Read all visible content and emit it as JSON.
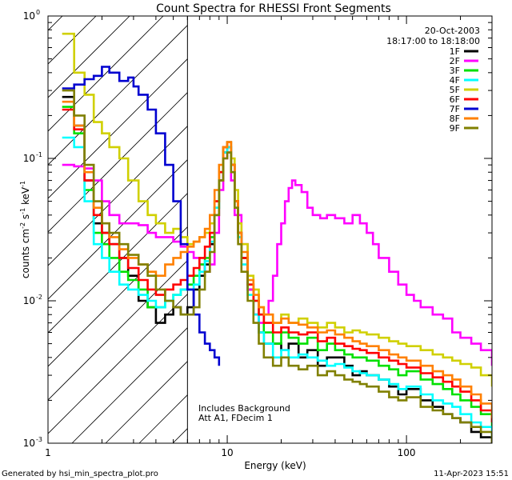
{
  "chart_data": {
    "type": "line",
    "title": "Count Spectra for RHESSI Front Segments",
    "xlabel": "Energy (keV)",
    "ylabel_main": "counts cm",
    "ylabel_sup1": "-2",
    "ylabel_mid": " s",
    "ylabel_sup2": "-1",
    "ylabel_end": " keV",
    "ylabel_sup3": "-1",
    "xscale": "log",
    "yscale": "log",
    "xlim": [
      1.0,
      300.0
    ],
    "ylim": [
      0.001,
      1.0
    ],
    "x_ticks": [
      {
        "value": 1,
        "label": "1"
      },
      {
        "value": 10,
        "label": "10"
      },
      {
        "value": 100,
        "label": "100"
      }
    ],
    "y_ticks": [
      {
        "value": 1.0,
        "base": "10",
        "exp": "0"
      },
      {
        "value": 0.1,
        "base": "10",
        "exp": "-1"
      },
      {
        "value": 0.01,
        "base": "10",
        "exp": "-2"
      },
      {
        "value": 0.001,
        "base": "10",
        "exp": "-3"
      }
    ],
    "date": "20-Oct-2003",
    "time_range": "18:17:00 to 18:18:00",
    "annotation_line1": "Includes Background",
    "annotation_line2": "Att A1, FDecim 1",
    "hatch_region_xmax": 6.0,
    "footer_left": "Generated by hsi_min_spectra_plot.pro",
    "footer_right": "11-Apr-2023 15:51",
    "series": [
      {
        "name": "1F",
        "color": "#000000",
        "x": [
          1.2,
          1.4,
          1.6,
          1.8,
          2.0,
          2.2,
          2.5,
          2.8,
          3.2,
          3.6,
          4.0,
          4.5,
          5.0,
          5.5,
          6.0,
          6.5,
          7.0,
          7.5,
          8.0,
          8.5,
          9.0,
          9.5,
          10.0,
          10.5,
          11.0,
          11.5,
          12.0,
          13,
          14,
          15,
          16,
          18,
          20,
          22,
          25,
          28,
          32,
          36,
          40,
          45,
          50,
          55,
          60,
          70,
          80,
          90,
          100,
          120,
          140,
          160,
          180,
          200,
          230,
          260,
          300
        ],
        "y": [
          0.27,
          0.17,
          0.07,
          0.035,
          0.03,
          0.025,
          0.02,
          0.015,
          0.01,
          0.009,
          0.007,
          0.008,
          0.009,
          0.008,
          0.009,
          0.012,
          0.015,
          0.018,
          0.025,
          0.04,
          0.07,
          0.11,
          0.12,
          0.09,
          0.05,
          0.03,
          0.02,
          0.012,
          0.008,
          0.006,
          0.005,
          0.005,
          0.0045,
          0.005,
          0.004,
          0.0045,
          0.0035,
          0.004,
          0.004,
          0.0035,
          0.003,
          0.0032,
          0.003,
          0.0028,
          0.0025,
          0.0022,
          0.0024,
          0.002,
          0.0018,
          0.0016,
          0.0015,
          0.0014,
          0.0012,
          0.0011,
          0.001
        ]
      },
      {
        "name": "2F",
        "color": "#ff00ff",
        "x": [
          1.2,
          1.4,
          1.6,
          1.8,
          2.0,
          2.2,
          2.5,
          2.8,
          3.2,
          3.6,
          4.0,
          4.5,
          5.0,
          5.5,
          6.0,
          6.5,
          7.0,
          7.5,
          8.0,
          8.5,
          9.0,
          9.5,
          10.0,
          10.5,
          11.0,
          12.0,
          13,
          14,
          15,
          16,
          17,
          18,
          19,
          20,
          21,
          22,
          23,
          24,
          26,
          28,
          30,
          33,
          36,
          40,
          45,
          50,
          55,
          60,
          65,
          70,
          80,
          90,
          100,
          110,
          120,
          140,
          160,
          180,
          200,
          230,
          260,
          300
        ],
        "y": [
          0.09,
          0.088,
          0.085,
          0.07,
          0.05,
          0.04,
          0.035,
          0.035,
          0.034,
          0.03,
          0.028,
          0.028,
          0.026,
          0.024,
          0.022,
          0.02,
          0.018,
          0.016,
          0.018,
          0.03,
          0.06,
          0.1,
          0.11,
          0.07,
          0.04,
          0.025,
          0.012,
          0.008,
          0.007,
          0.008,
          0.01,
          0.015,
          0.025,
          0.035,
          0.05,
          0.062,
          0.07,
          0.065,
          0.058,
          0.045,
          0.04,
          0.038,
          0.04,
          0.038,
          0.035,
          0.04,
          0.035,
          0.03,
          0.025,
          0.02,
          0.016,
          0.013,
          0.011,
          0.01,
          0.009,
          0.008,
          0.0075,
          0.006,
          0.0055,
          0.005,
          0.0045,
          0.0035
        ]
      },
      {
        "name": "3F",
        "color": "#00e000",
        "x": [
          1.2,
          1.4,
          1.6,
          1.8,
          2.0,
          2.2,
          2.5,
          2.8,
          3.2,
          3.6,
          4.0,
          4.5,
          5.0,
          5.5,
          6.0,
          6.5,
          7.0,
          7.5,
          8.0,
          8.5,
          9.0,
          9.5,
          10.0,
          10.5,
          11.0,
          11.5,
          12.0,
          13,
          14,
          15,
          16,
          18,
          20,
          22,
          25,
          28,
          32,
          36,
          40,
          45,
          50,
          55,
          60,
          70,
          80,
          90,
          100,
          120,
          140,
          160,
          180,
          200,
          230,
          260,
          300
        ],
        "y": [
          0.23,
          0.15,
          0.06,
          0.03,
          0.025,
          0.02,
          0.016,
          0.014,
          0.012,
          0.009,
          0.009,
          0.01,
          0.011,
          0.012,
          0.013,
          0.015,
          0.018,
          0.02,
          0.028,
          0.045,
          0.08,
          0.12,
          0.13,
          0.09,
          0.05,
          0.03,
          0.02,
          0.013,
          0.01,
          0.008,
          0.006,
          0.005,
          0.006,
          0.0055,
          0.005,
          0.0055,
          0.0045,
          0.005,
          0.0045,
          0.0042,
          0.004,
          0.004,
          0.0038,
          0.0035,
          0.0033,
          0.003,
          0.0032,
          0.0028,
          0.0026,
          0.0024,
          0.0022,
          0.002,
          0.0018,
          0.0016,
          0.0013
        ]
      },
      {
        "name": "4F",
        "color": "#00ffff",
        "x": [
          1.2,
          1.4,
          1.6,
          1.8,
          2.0,
          2.2,
          2.5,
          2.8,
          3.2,
          3.6,
          4.0,
          4.5,
          5.0,
          5.5,
          6.0,
          6.5,
          7.0,
          7.5,
          8.0,
          8.5,
          9.0,
          9.5,
          10.0,
          10.5,
          11.0,
          11.5,
          12.0,
          13,
          14,
          15,
          16,
          18,
          20,
          22,
          25,
          28,
          32,
          36,
          40,
          45,
          50,
          55,
          60,
          70,
          80,
          90,
          100,
          120,
          140,
          160,
          180,
          200,
          230,
          260,
          300
        ],
        "y": [
          0.14,
          0.12,
          0.05,
          0.025,
          0.02,
          0.016,
          0.013,
          0.012,
          0.011,
          0.01,
          0.009,
          0.01,
          0.011,
          0.012,
          0.012,
          0.013,
          0.016,
          0.019,
          0.026,
          0.045,
          0.08,
          0.11,
          0.12,
          0.08,
          0.045,
          0.028,
          0.018,
          0.011,
          0.008,
          0.006,
          0.005,
          0.004,
          0.0045,
          0.004,
          0.0042,
          0.004,
          0.0038,
          0.0035,
          0.0036,
          0.0034,
          0.0032,
          0.0031,
          0.003,
          0.0028,
          0.0026,
          0.0024,
          0.0025,
          0.0022,
          0.002,
          0.0019,
          0.0018,
          0.0016,
          0.0014,
          0.0013,
          0.0011
        ]
      },
      {
        "name": "5F",
        "color": "#d0d000",
        "x": [
          1.2,
          1.4,
          1.6,
          1.8,
          2.0,
          2.2,
          2.5,
          2.8,
          3.2,
          3.6,
          4.0,
          4.5,
          5.0,
          5.5,
          6.0,
          6.5,
          7.0,
          7.5,
          8.0,
          8.5,
          9.0,
          9.5,
          10.0,
          10.5,
          11.0,
          11.5,
          12.0,
          13,
          14,
          15,
          16,
          18,
          20,
          22,
          25,
          28,
          32,
          36,
          40,
          45,
          50,
          55,
          60,
          70,
          80,
          90,
          100,
          120,
          140,
          160,
          180,
          200,
          230,
          260,
          300
        ],
        "y": [
          0.75,
          0.4,
          0.28,
          0.18,
          0.15,
          0.12,
          0.1,
          0.07,
          0.05,
          0.04,
          0.035,
          0.03,
          0.032,
          0.028,
          0.025,
          0.026,
          0.028,
          0.03,
          0.035,
          0.05,
          0.08,
          0.12,
          0.13,
          0.1,
          0.06,
          0.035,
          0.025,
          0.015,
          0.012,
          0.009,
          0.008,
          0.007,
          0.008,
          0.007,
          0.0075,
          0.007,
          0.0065,
          0.007,
          0.0065,
          0.006,
          0.0062,
          0.006,
          0.0058,
          0.0055,
          0.0052,
          0.005,
          0.0048,
          0.0045,
          0.0042,
          0.004,
          0.0038,
          0.0036,
          0.0034,
          0.003,
          0.0025
        ]
      },
      {
        "name": "6F",
        "color": "#ff0000",
        "x": [
          1.2,
          1.4,
          1.6,
          1.8,
          2.0,
          2.2,
          2.5,
          2.8,
          3.2,
          3.6,
          4.0,
          4.5,
          5.0,
          5.5,
          6.0,
          6.5,
          7.0,
          7.5,
          8.0,
          8.5,
          9.0,
          9.5,
          10.0,
          10.5,
          11.0,
          11.5,
          12.0,
          13,
          14,
          15,
          16,
          18,
          20,
          22,
          25,
          28,
          32,
          36,
          40,
          45,
          50,
          55,
          60,
          70,
          80,
          90,
          100,
          120,
          140,
          160,
          180,
          200,
          230,
          260,
          300
        ],
        "y": [
          0.22,
          0.16,
          0.07,
          0.04,
          0.03,
          0.025,
          0.02,
          0.017,
          0.014,
          0.012,
          0.011,
          0.012,
          0.013,
          0.014,
          0.015,
          0.017,
          0.02,
          0.024,
          0.03,
          0.05,
          0.08,
          0.12,
          0.13,
          0.09,
          0.05,
          0.03,
          0.02,
          0.013,
          0.01,
          0.008,
          0.007,
          0.006,
          0.0065,
          0.006,
          0.0058,
          0.006,
          0.0052,
          0.0055,
          0.005,
          0.0048,
          0.0046,
          0.0045,
          0.0043,
          0.004,
          0.0038,
          0.0036,
          0.0034,
          0.0031,
          0.0029,
          0.0027,
          0.0025,
          0.0023,
          0.002,
          0.0017,
          0.0014
        ]
      },
      {
        "name": "7F",
        "color": "#0000d0",
        "x": [
          1.2,
          1.4,
          1.6,
          1.8,
          2.0,
          2.2,
          2.5,
          2.8,
          3.0,
          3.2,
          3.6,
          4.0,
          4.5,
          5.0,
          5.5,
          6.0,
          6.5,
          7.0,
          7.5,
          8.0,
          8.5,
          9.0
        ],
        "y": [
          0.31,
          0.33,
          0.36,
          0.38,
          0.44,
          0.4,
          0.35,
          0.37,
          0.32,
          0.28,
          0.22,
          0.15,
          0.09,
          0.05,
          0.025,
          0.012,
          0.008,
          0.006,
          0.005,
          0.0045,
          0.004,
          0.0035
        ]
      },
      {
        "name": "8F",
        "color": "#ff8000",
        "x": [
          1.2,
          1.4,
          1.6,
          1.8,
          2.0,
          2.2,
          2.5,
          2.8,
          3.2,
          3.6,
          4.0,
          4.5,
          5.0,
          5.5,
          6.0,
          6.5,
          7.0,
          7.5,
          8.0,
          8.5,
          9.0,
          9.5,
          10.0,
          10.5,
          11.0,
          11.5,
          12.0,
          13,
          14,
          15,
          16,
          18,
          20,
          22,
          25,
          28,
          32,
          36,
          40,
          45,
          50,
          55,
          60,
          70,
          80,
          90,
          100,
          120,
          140,
          160,
          180,
          200,
          230,
          260,
          300
        ],
        "y": [
          0.25,
          0.17,
          0.08,
          0.045,
          0.035,
          0.028,
          0.023,
          0.02,
          0.018,
          0.016,
          0.015,
          0.018,
          0.02,
          0.022,
          0.024,
          0.026,
          0.028,
          0.032,
          0.04,
          0.06,
          0.09,
          0.12,
          0.13,
          0.09,
          0.05,
          0.03,
          0.022,
          0.014,
          0.011,
          0.009,
          0.008,
          0.007,
          0.0075,
          0.007,
          0.0068,
          0.0065,
          0.006,
          0.0062,
          0.0058,
          0.0055,
          0.0052,
          0.005,
          0.0048,
          0.0045,
          0.0042,
          0.004,
          0.0038,
          0.0035,
          0.0032,
          0.003,
          0.0028,
          0.0025,
          0.0022,
          0.0019,
          0.0015
        ]
      },
      {
        "name": "9F",
        "color": "#808000",
        "x": [
          1.2,
          1.4,
          1.6,
          1.8,
          2.0,
          2.2,
          2.5,
          2.8,
          3.2,
          3.6,
          4.0,
          4.5,
          5.0,
          5.5,
          6.0,
          6.5,
          7.0,
          7.5,
          8.0,
          8.5,
          9.0,
          9.5,
          10.0,
          10.5,
          11.0,
          11.5,
          12.0,
          13,
          14,
          15,
          16,
          18,
          20,
          22,
          25,
          28,
          32,
          36,
          40,
          45,
          50,
          55,
          60,
          70,
          80,
          90,
          100,
          120,
          140,
          160,
          180,
          200,
          230,
          260,
          300
        ],
        "y": [
          0.3,
          0.2,
          0.09,
          0.05,
          0.035,
          0.03,
          0.025,
          0.021,
          0.018,
          0.015,
          0.012,
          0.01,
          0.009,
          0.008,
          0.008,
          0.009,
          0.012,
          0.016,
          0.022,
          0.04,
          0.07,
          0.1,
          0.11,
          0.08,
          0.045,
          0.025,
          0.016,
          0.01,
          0.007,
          0.005,
          0.004,
          0.0035,
          0.004,
          0.0035,
          0.0033,
          0.0035,
          0.003,
          0.0032,
          0.003,
          0.0028,
          0.0027,
          0.0026,
          0.0025,
          0.0023,
          0.0021,
          0.002,
          0.0021,
          0.0018,
          0.0017,
          0.0016,
          0.0015,
          0.0014,
          0.0013,
          0.0012,
          0.001
        ]
      }
    ]
  }
}
